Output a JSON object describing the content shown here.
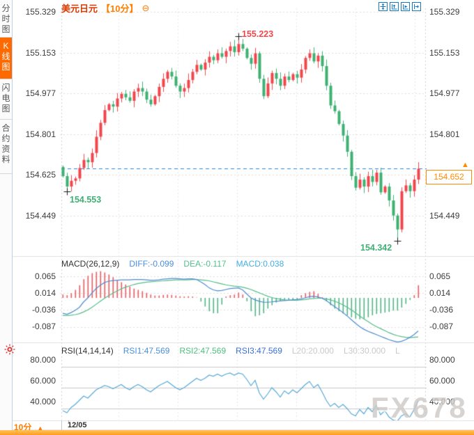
{
  "header": {
    "title": "美元日元",
    "period_tag": "【10分】",
    "settings_glyph": "⊖"
  },
  "sidebar": {
    "tabs": [
      {
        "label": "分时图",
        "active": false
      },
      {
        "label": "K线图",
        "active": true
      },
      {
        "label": "闪电图",
        "active": false
      },
      {
        "label": "合约资料",
        "active": false
      }
    ]
  },
  "toolbar": {
    "icons": [
      "pan-tool",
      "zoom-axis-tool",
      "play-axis-tool",
      "scroll-right-tool"
    ]
  },
  "indicators": {
    "macd": {
      "name": "MACD(26,12,9)",
      "diff_label": "DIFF:-0.099",
      "dea_label": "DEA:-0.117",
      "macd_label": "MACD:0.038"
    },
    "rsi": {
      "name": "RSI(14,14,14)",
      "rsi1_label": "RSI1:47.569",
      "rsi2_label": "RSI2:47.569",
      "rsi3_label": "RSI3:47.569",
      "l20_label": "L20:20.000",
      "l30_label": "L30:30.000",
      "l_label": "L"
    }
  },
  "footer": {
    "period_label": "10分",
    "dropdown_glyph": "▲",
    "date_label": "12/05"
  },
  "watermark": "FX678",
  "colors": {
    "up": "#F0474D",
    "down": "#3EB173",
    "diff_line": "#4E8BD0",
    "dea_line": "#55BB88",
    "hist_up": "#EE5A5F",
    "hist_down": "#4FB585",
    "rsi_line": "#57A8D6",
    "last_price_line": "#2088DD",
    "accent_orange": "#FF7E00",
    "title_red": "#D83A00"
  },
  "chart_data": [
    {
      "type": "candlestick",
      "interval": "10分",
      "y_ticks": [
        {
          "label": "155.329",
          "value": 155.329
        },
        {
          "label": "155.153",
          "value": 155.153
        },
        {
          "label": "154.977",
          "value": 154.977
        },
        {
          "label": "154.801",
          "value": 154.801
        },
        {
          "label": "154.625",
          "value": 154.625
        },
        {
          "label": "154.449",
          "value": 154.449
        }
      ],
      "open_first": 154.66,
      "closes": [
        154.62,
        154.575,
        154.6,
        154.61,
        154.655,
        154.69,
        154.68,
        154.72,
        154.79,
        154.85,
        154.905,
        154.93,
        154.92,
        154.955,
        154.975,
        154.96,
        154.945,
        154.985,
        155.0,
        154.985,
        154.95,
        154.93,
        154.965,
        155.005,
        155.04,
        155.07,
        155.05,
        155.01,
        154.985,
        155.0,
        155.035,
        155.07,
        155.1,
        155.08,
        155.11,
        155.135,
        155.12,
        155.15,
        155.135,
        155.16,
        155.18,
        155.155,
        155.19,
        155.17,
        155.13,
        155.105,
        155.15,
        155.04,
        154.965,
        155.02,
        155.065,
        155.04,
        155.01,
        155.05,
        155.035,
        155.06,
        155.045,
        155.08,
        155.13,
        155.15,
        155.115,
        155.14,
        155.095,
        155.01,
        154.925,
        154.9,
        154.845,
        154.795,
        154.725,
        154.62,
        154.57,
        154.605,
        154.575,
        154.62,
        154.595,
        154.635,
        154.55,
        154.575,
        154.515,
        154.45,
        154.39,
        154.555,
        154.58,
        154.555,
        154.605,
        154.652
      ],
      "extremes": {
        "high": {
          "index": 42,
          "price": 155.223,
          "label": "155.223"
        },
        "low_start": {
          "index": 1,
          "price": 154.553,
          "label": "154.553"
        },
        "low_min": {
          "index": 80,
          "price": 154.342,
          "label": "154.342"
        }
      },
      "last_price": {
        "label": "154.652",
        "value": 154.652
      }
    },
    {
      "type": "macd",
      "y_ticks": [
        {
          "label": "0.065",
          "value": 0.065
        },
        {
          "label": "0.014",
          "value": 0.014
        },
        {
          "label": "-0.036",
          "value": -0.036
        },
        {
          "label": "-0.087",
          "value": -0.087
        }
      ],
      "diff": [
        -0.046,
        -0.049,
        -0.044,
        -0.037,
        -0.028,
        -0.012,
        0.0,
        0.015,
        0.028,
        0.038,
        0.046,
        0.05,
        0.052,
        0.053,
        0.054,
        0.054,
        0.054,
        0.055,
        0.055,
        0.055,
        0.054,
        0.053,
        0.053,
        0.054,
        0.056,
        0.057,
        0.058,
        0.058,
        0.057,
        0.056,
        0.057,
        0.057,
        0.055,
        0.048,
        0.04,
        0.03,
        0.024,
        0.021,
        0.022,
        0.025,
        0.028,
        0.029,
        0.03,
        0.024,
        0.012,
        0.0,
        -0.006,
        -0.01,
        -0.013,
        -0.013,
        -0.012,
        -0.01,
        -0.009,
        -0.008,
        -0.007,
        -0.006,
        -0.005,
        -0.003,
        0.0,
        0.004,
        0.005,
        0.003,
        -0.001,
        -0.008,
        -0.017,
        -0.026,
        -0.035,
        -0.044,
        -0.054,
        -0.065,
        -0.076,
        -0.086,
        -0.094,
        -0.1,
        -0.105,
        -0.11,
        -0.115,
        -0.12,
        -0.125,
        -0.129,
        -0.132,
        -0.13,
        -0.125,
        -0.118,
        -0.11,
        -0.099
      ],
      "dea": [
        -0.053,
        -0.053,
        -0.052,
        -0.05,
        -0.047,
        -0.042,
        -0.036,
        -0.028,
        -0.019,
        -0.01,
        -0.001,
        0.007,
        0.014,
        0.021,
        0.027,
        0.032,
        0.036,
        0.04,
        0.043,
        0.045,
        0.047,
        0.048,
        0.049,
        0.05,
        0.051,
        0.052,
        0.053,
        0.054,
        0.054,
        0.054,
        0.054,
        0.055,
        0.055,
        0.054,
        0.053,
        0.051,
        0.048,
        0.045,
        0.042,
        0.039,
        0.037,
        0.035,
        0.034,
        0.032,
        0.029,
        0.025,
        0.02,
        0.015,
        0.01,
        0.005,
        0.001,
        -0.002,
        -0.004,
        -0.006,
        -0.007,
        -0.007,
        -0.007,
        -0.006,
        -0.005,
        -0.003,
        -0.002,
        -0.001,
        -0.001,
        -0.003,
        -0.006,
        -0.01,
        -0.015,
        -0.021,
        -0.028,
        -0.036,
        -0.045,
        -0.054,
        -0.063,
        -0.071,
        -0.079,
        -0.086,
        -0.092,
        -0.098,
        -0.104,
        -0.109,
        -0.113,
        -0.116,
        -0.118,
        -0.119,
        -0.118,
        -0.117
      ],
      "histogram": [
        0.01,
        0.008,
        0.014,
        0.024,
        0.038,
        0.056,
        0.066,
        0.074,
        0.078,
        0.08,
        0.076,
        0.07,
        0.062,
        0.054,
        0.047,
        0.04,
        0.034,
        0.028,
        0.024,
        0.02,
        0.015,
        0.01,
        0.007,
        0.007,
        0.009,
        0.01,
        0.009,
        0.007,
        0.005,
        0.004,
        0.005,
        0.004,
        0.001,
        -0.011,
        -0.026,
        -0.04,
        -0.046,
        -0.046,
        -0.02,
        0.004,
        0.008,
        0.01,
        0.016,
        0.01,
        -0.01,
        -0.04,
        -0.055,
        -0.052,
        -0.046,
        -0.032,
        -0.022,
        -0.014,
        -0.01,
        -0.006,
        -0.006,
        -0.008,
        -0.004,
        0.008,
        0.014,
        0.018,
        0.02,
        0.012,
        0.002,
        -0.01,
        -0.022,
        -0.032,
        -0.04,
        -0.047,
        -0.052,
        -0.058,
        -0.062,
        -0.064,
        -0.062,
        -0.058,
        -0.052,
        -0.048,
        -0.046,
        -0.044,
        -0.042,
        -0.038,
        -0.038,
        -0.029,
        -0.018,
        -0.006,
        0.008,
        0.038
      ]
    },
    {
      "type": "line",
      "name": "RSI",
      "y_ticks": [
        {
          "label": "80.000",
          "value": 80
        },
        {
          "label": "60.000",
          "value": 60
        },
        {
          "label": "40.000",
          "value": 40
        }
      ],
      "values": [
        38,
        36,
        41,
        44,
        48,
        52,
        50,
        54,
        58,
        60,
        62,
        61,
        59,
        61,
        63,
        60,
        58,
        61,
        63,
        61,
        58,
        56,
        59,
        62,
        64,
        66,
        63,
        60,
        58,
        60,
        63,
        66,
        69,
        67,
        69,
        72,
        71,
        73,
        71,
        73,
        74,
        72,
        74,
        73,
        68,
        62,
        67,
        55,
        49,
        54,
        60,
        56,
        51,
        57,
        54,
        58,
        55,
        59,
        63,
        66,
        60,
        63,
        56,
        48,
        42,
        45,
        41,
        44,
        40,
        35,
        33,
        39,
        35,
        41,
        37,
        43,
        34,
        38,
        32,
        29,
        28,
        33,
        35,
        32,
        39,
        47.569
      ]
    }
  ]
}
